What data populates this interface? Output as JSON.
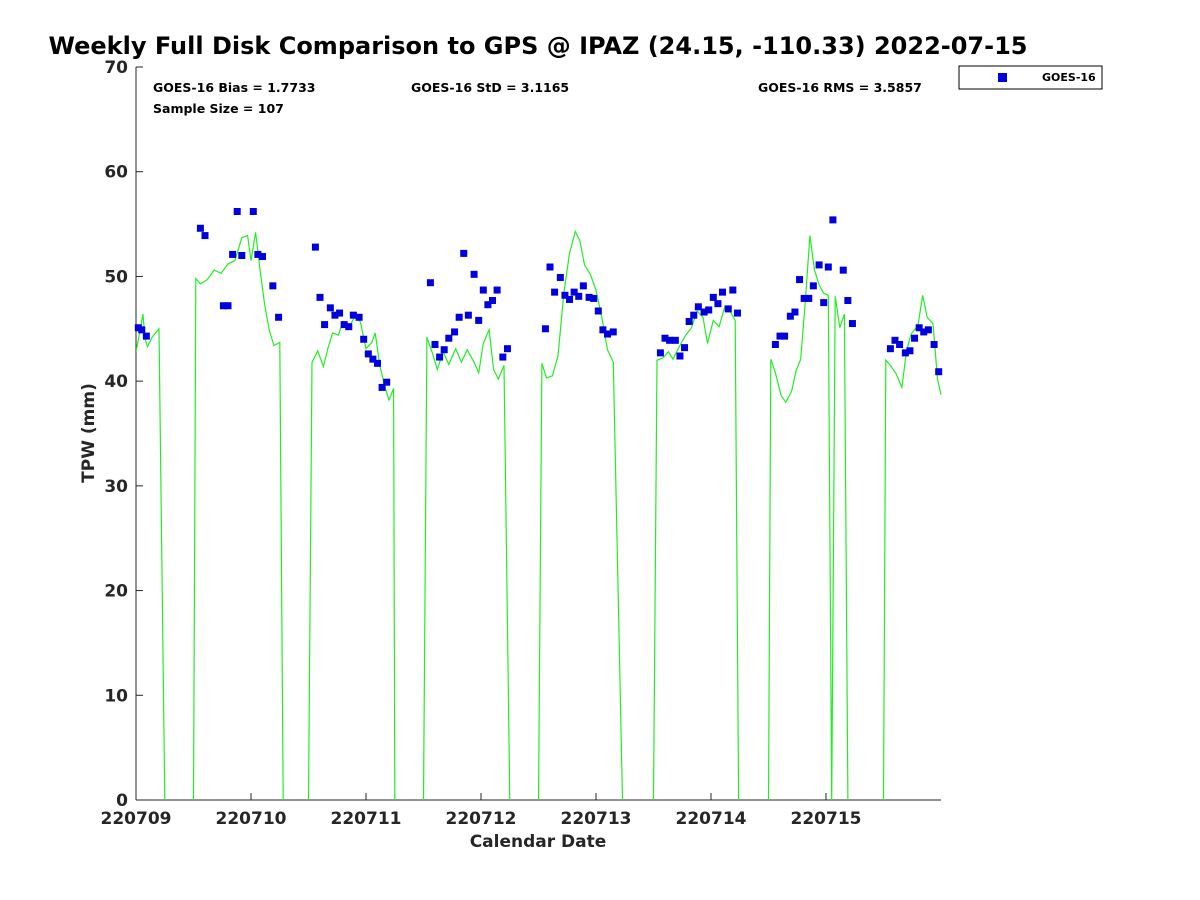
{
  "chart_data": {
    "type": "scatter",
    "title": "Weekly Full Disk Comparison to GPS @ IPAZ (24.15, -110.33) 2022-07-15",
    "xlabel": "Calendar Date",
    "ylabel": "TPW (mm)",
    "xlim": [
      0,
      7
    ],
    "ylim": [
      0,
      70
    ],
    "yticks": [
      0,
      10,
      20,
      30,
      40,
      50,
      60,
      70
    ],
    "xticks": [
      {
        "x": 0,
        "label": "220709"
      },
      {
        "x": 1,
        "label": "220710"
      },
      {
        "x": 2,
        "label": "220711"
      },
      {
        "x": 3,
        "label": "220712"
      },
      {
        "x": 4,
        "label": "220713"
      },
      {
        "x": 5,
        "label": "220714"
      },
      {
        "x": 6,
        "label": "220715"
      }
    ],
    "stats": {
      "bias": "GOES-16 Bias = 1.7733",
      "std": "GOES-16 StD = 3.1165",
      "rms": "GOES-16 RMS = 3.5857",
      "sample": "Sample Size = 107"
    },
    "legend": {
      "label": "GOES-16",
      "position": "top-right-outside"
    },
    "colors": {
      "goes": "#0000dd",
      "gps": "#22ee22"
    },
    "series": [
      {
        "name": "GOES-16",
        "color": "#0000dd",
        "points": [
          [
            0.02,
            45.1
          ],
          [
            0.05,
            44.9
          ],
          [
            0.09,
            44.3
          ],
          [
            0.56,
            54.6
          ],
          [
            0.6,
            53.9
          ],
          [
            0.76,
            47.2
          ],
          [
            0.8,
            47.2
          ],
          [
            0.84,
            52.1
          ],
          [
            0.88,
            56.2
          ],
          [
            0.92,
            52
          ],
          [
            1.02,
            56.2
          ],
          [
            1.06,
            52.1
          ],
          [
            1.1,
            51.9
          ],
          [
            1.19,
            49.1
          ],
          [
            1.24,
            46.1
          ],
          [
            1.56,
            52.8
          ],
          [
            1.6,
            48
          ],
          [
            1.64,
            45.4
          ],
          [
            1.69,
            47
          ],
          [
            1.73,
            46.3
          ],
          [
            1.77,
            46.5
          ],
          [
            1.81,
            45.4
          ],
          [
            1.85,
            45.2
          ],
          [
            1.89,
            46.3
          ],
          [
            1.94,
            46.1
          ],
          [
            1.98,
            44
          ],
          [
            2.02,
            42.6
          ],
          [
            2.06,
            42.1
          ],
          [
            2.1,
            41.7
          ],
          [
            2.14,
            39.4
          ],
          [
            2.18,
            39.9
          ],
          [
            2.56,
            49.4
          ],
          [
            2.6,
            43.5
          ],
          [
            2.64,
            42.3
          ],
          [
            2.68,
            43
          ],
          [
            2.72,
            44.1
          ],
          [
            2.77,
            44.7
          ],
          [
            2.81,
            46.1
          ],
          [
            2.85,
            52.2
          ],
          [
            2.89,
            46.3
          ],
          [
            2.94,
            50.2
          ],
          [
            2.98,
            45.8
          ],
          [
            3.02,
            48.7
          ],
          [
            3.06,
            47.3
          ],
          [
            3.1,
            47.7
          ],
          [
            3.14,
            48.7
          ],
          [
            3.19,
            42.3
          ],
          [
            3.23,
            43.1
          ],
          [
            3.56,
            45
          ],
          [
            3.6,
            50.9
          ],
          [
            3.64,
            48.5
          ],
          [
            3.69,
            49.9
          ],
          [
            3.73,
            48.2
          ],
          [
            3.77,
            47.8
          ],
          [
            3.81,
            48.5
          ],
          [
            3.85,
            48.1
          ],
          [
            3.89,
            49.1
          ],
          [
            3.94,
            48
          ],
          [
            3.98,
            47.9
          ],
          [
            4.02,
            46.7
          ],
          [
            4.06,
            44.9
          ],
          [
            4.1,
            44.5
          ],
          [
            4.15,
            44.7
          ],
          [
            4.56,
            42.7
          ],
          [
            4.6,
            44.1
          ],
          [
            4.64,
            43.9
          ],
          [
            4.69,
            43.9
          ],
          [
            4.73,
            42.4
          ],
          [
            4.77,
            43.2
          ],
          [
            4.81,
            45.7
          ],
          [
            4.85,
            46.3
          ],
          [
            4.89,
            47.1
          ],
          [
            4.94,
            46.6
          ],
          [
            4.98,
            46.8
          ],
          [
            5.02,
            48
          ],
          [
            5.06,
            47.4
          ],
          [
            5.1,
            48.5
          ],
          [
            5.15,
            46.9
          ],
          [
            5.19,
            48.7
          ],
          [
            5.23,
            46.5
          ],
          [
            5.56,
            43.5
          ],
          [
            5.6,
            44.3
          ],
          [
            5.64,
            44.3
          ],
          [
            5.69,
            46.2
          ],
          [
            5.73,
            46.6
          ],
          [
            5.77,
            49.7
          ],
          [
            5.81,
            47.9
          ],
          [
            5.85,
            47.9
          ],
          [
            5.89,
            49.1
          ],
          [
            5.94,
            51.1
          ],
          [
            5.98,
            47.5
          ],
          [
            6.02,
            50.9
          ],
          [
            6.06,
            55.4
          ],
          [
            6.15,
            50.6
          ],
          [
            6.19,
            47.7
          ],
          [
            6.23,
            45.5
          ],
          [
            6.56,
            43.1
          ],
          [
            6.6,
            43.9
          ],
          [
            6.64,
            43.5
          ],
          [
            6.69,
            42.7
          ],
          [
            6.73,
            42.9
          ],
          [
            6.77,
            44.1
          ],
          [
            6.81,
            45.1
          ],
          [
            6.85,
            44.7
          ],
          [
            6.89,
            44.9
          ],
          [
            6.94,
            43.5
          ],
          [
            6.98,
            40.9
          ]
        ]
      },
      {
        "name": "GPS",
        "color": "#22ee22",
        "segments": [
          [
            [
              0,
              42.8
            ],
            [
              0.03,
              44.5
            ],
            [
              0.06,
              46.4
            ],
            [
              0.08,
              44
            ],
            [
              0.1,
              43.3
            ],
            [
              0.14,
              44.2
            ],
            [
              0.2,
              45
            ],
            [
              0.25,
              0
            ]
          ],
          [
            [
              0.5,
              0
            ],
            [
              0.52,
              49.8
            ],
            [
              0.56,
              49.3
            ],
            [
              0.62,
              49.7
            ],
            [
              0.68,
              50.6
            ],
            [
              0.74,
              50.3
            ],
            [
              0.8,
              51.2
            ],
            [
              0.86,
              51.5
            ],
            [
              0.92,
              53.7
            ],
            [
              0.97,
              53.9
            ],
            [
              1,
              51.5
            ],
            [
              1.04,
              54.2
            ],
            [
              1.08,
              50.5
            ],
            [
              1.12,
              47.2
            ],
            [
              1.16,
              44.8
            ],
            [
              1.2,
              43.4
            ],
            [
              1.25,
              43.7
            ],
            [
              1.28,
              0
            ]
          ],
          [
            [
              1.5,
              0
            ],
            [
              1.53,
              41.8
            ],
            [
              1.58,
              42.9
            ],
            [
              1.63,
              41.4
            ],
            [
              1.67,
              43.2
            ],
            [
              1.71,
              44.6
            ],
            [
              1.76,
              44.4
            ],
            [
              1.8,
              45.7
            ],
            [
              1.85,
              45.1
            ],
            [
              1.9,
              46.1
            ],
            [
              1.95,
              45.7
            ],
            [
              2,
              43.1
            ],
            [
              2.05,
              43.7
            ],
            [
              2.08,
              44.6
            ],
            [
              2.12,
              41.5
            ],
            [
              2.16,
              39.6
            ],
            [
              2.2,
              38.2
            ],
            [
              2.24,
              39.3
            ],
            [
              2.25,
              0
            ]
          ],
          [
            [
              2.5,
              0
            ],
            [
              2.53,
              44.2
            ],
            [
              2.58,
              42.6
            ],
            [
              2.62,
              41.1
            ],
            [
              2.67,
              42.8
            ],
            [
              2.72,
              41.6
            ],
            [
              2.78,
              43.1
            ],
            [
              2.83,
              41.8
            ],
            [
              2.88,
              43
            ],
            [
              2.94,
              41.8
            ],
            [
              2.98,
              40.8
            ],
            [
              3.02,
              43.6
            ],
            [
              3.07,
              44.9
            ],
            [
              3.11,
              41.1
            ],
            [
              3.15,
              40.2
            ],
            [
              3.2,
              41.5
            ],
            [
              3.25,
              0
            ]
          ],
          [
            [
              3.5,
              0
            ],
            [
              3.53,
              41.7
            ],
            [
              3.57,
              40.3
            ],
            [
              3.62,
              40.5
            ],
            [
              3.67,
              42.4
            ],
            [
              3.72,
              48.4
            ],
            [
              3.77,
              52.2
            ],
            [
              3.82,
              54.3
            ],
            [
              3.86,
              53.4
            ],
            [
              3.9,
              51.1
            ],
            [
              3.95,
              50.2
            ],
            [
              4,
              48.7
            ],
            [
              4.05,
              46.1
            ],
            [
              4.1,
              43
            ],
            [
              4.15,
              41.8
            ],
            [
              4.23,
              0
            ]
          ],
          [
            [
              4.5,
              0
            ],
            [
              4.53,
              42
            ],
            [
              4.58,
              42.2
            ],
            [
              4.63,
              42.8
            ],
            [
              4.67,
              42.1
            ],
            [
              4.72,
              43.2
            ],
            [
              4.78,
              44.4
            ],
            [
              4.83,
              45.1
            ],
            [
              4.88,
              46.7
            ],
            [
              4.93,
              46.1
            ],
            [
              4.97,
              43.6
            ],
            [
              5.02,
              45.8
            ],
            [
              5.07,
              45.2
            ],
            [
              5.12,
              47.1
            ],
            [
              5.17,
              46.6
            ],
            [
              5.21,
              45.8
            ],
            [
              5.24,
              0
            ]
          ],
          [
            [
              5.5,
              0
            ],
            [
              5.52,
              42.1
            ],
            [
              5.56,
              40.8
            ],
            [
              5.61,
              38.6
            ],
            [
              5.65,
              38
            ],
            [
              5.7,
              39
            ],
            [
              5.74,
              41
            ],
            [
              5.78,
              42.1
            ],
            [
              5.82,
              47.6
            ],
            [
              5.86,
              53.9
            ],
            [
              5.9,
              50.6
            ],
            [
              5.94,
              49.2
            ],
            [
              5.98,
              48.4
            ],
            [
              6.02,
              48.2
            ],
            [
              6.05,
              0
            ],
            [
              6.08,
              48.1
            ],
            [
              6.12,
              45.1
            ],
            [
              6.16,
              46.4
            ],
            [
              6.19,
              0
            ]
          ],
          [
            [
              6.5,
              0
            ],
            [
              6.52,
              42
            ],
            [
              6.56,
              41.5
            ],
            [
              6.61,
              40.7
            ],
            [
              6.66,
              39.4
            ],
            [
              6.7,
              42.9
            ],
            [
              6.74,
              44.5
            ],
            [
              6.8,
              45.3
            ],
            [
              6.84,
              48.2
            ],
            [
              6.88,
              46.1
            ],
            [
              6.93,
              45.5
            ],
            [
              6.97,
              40.2
            ],
            [
              7,
              38.7
            ]
          ]
        ]
      }
    ]
  }
}
